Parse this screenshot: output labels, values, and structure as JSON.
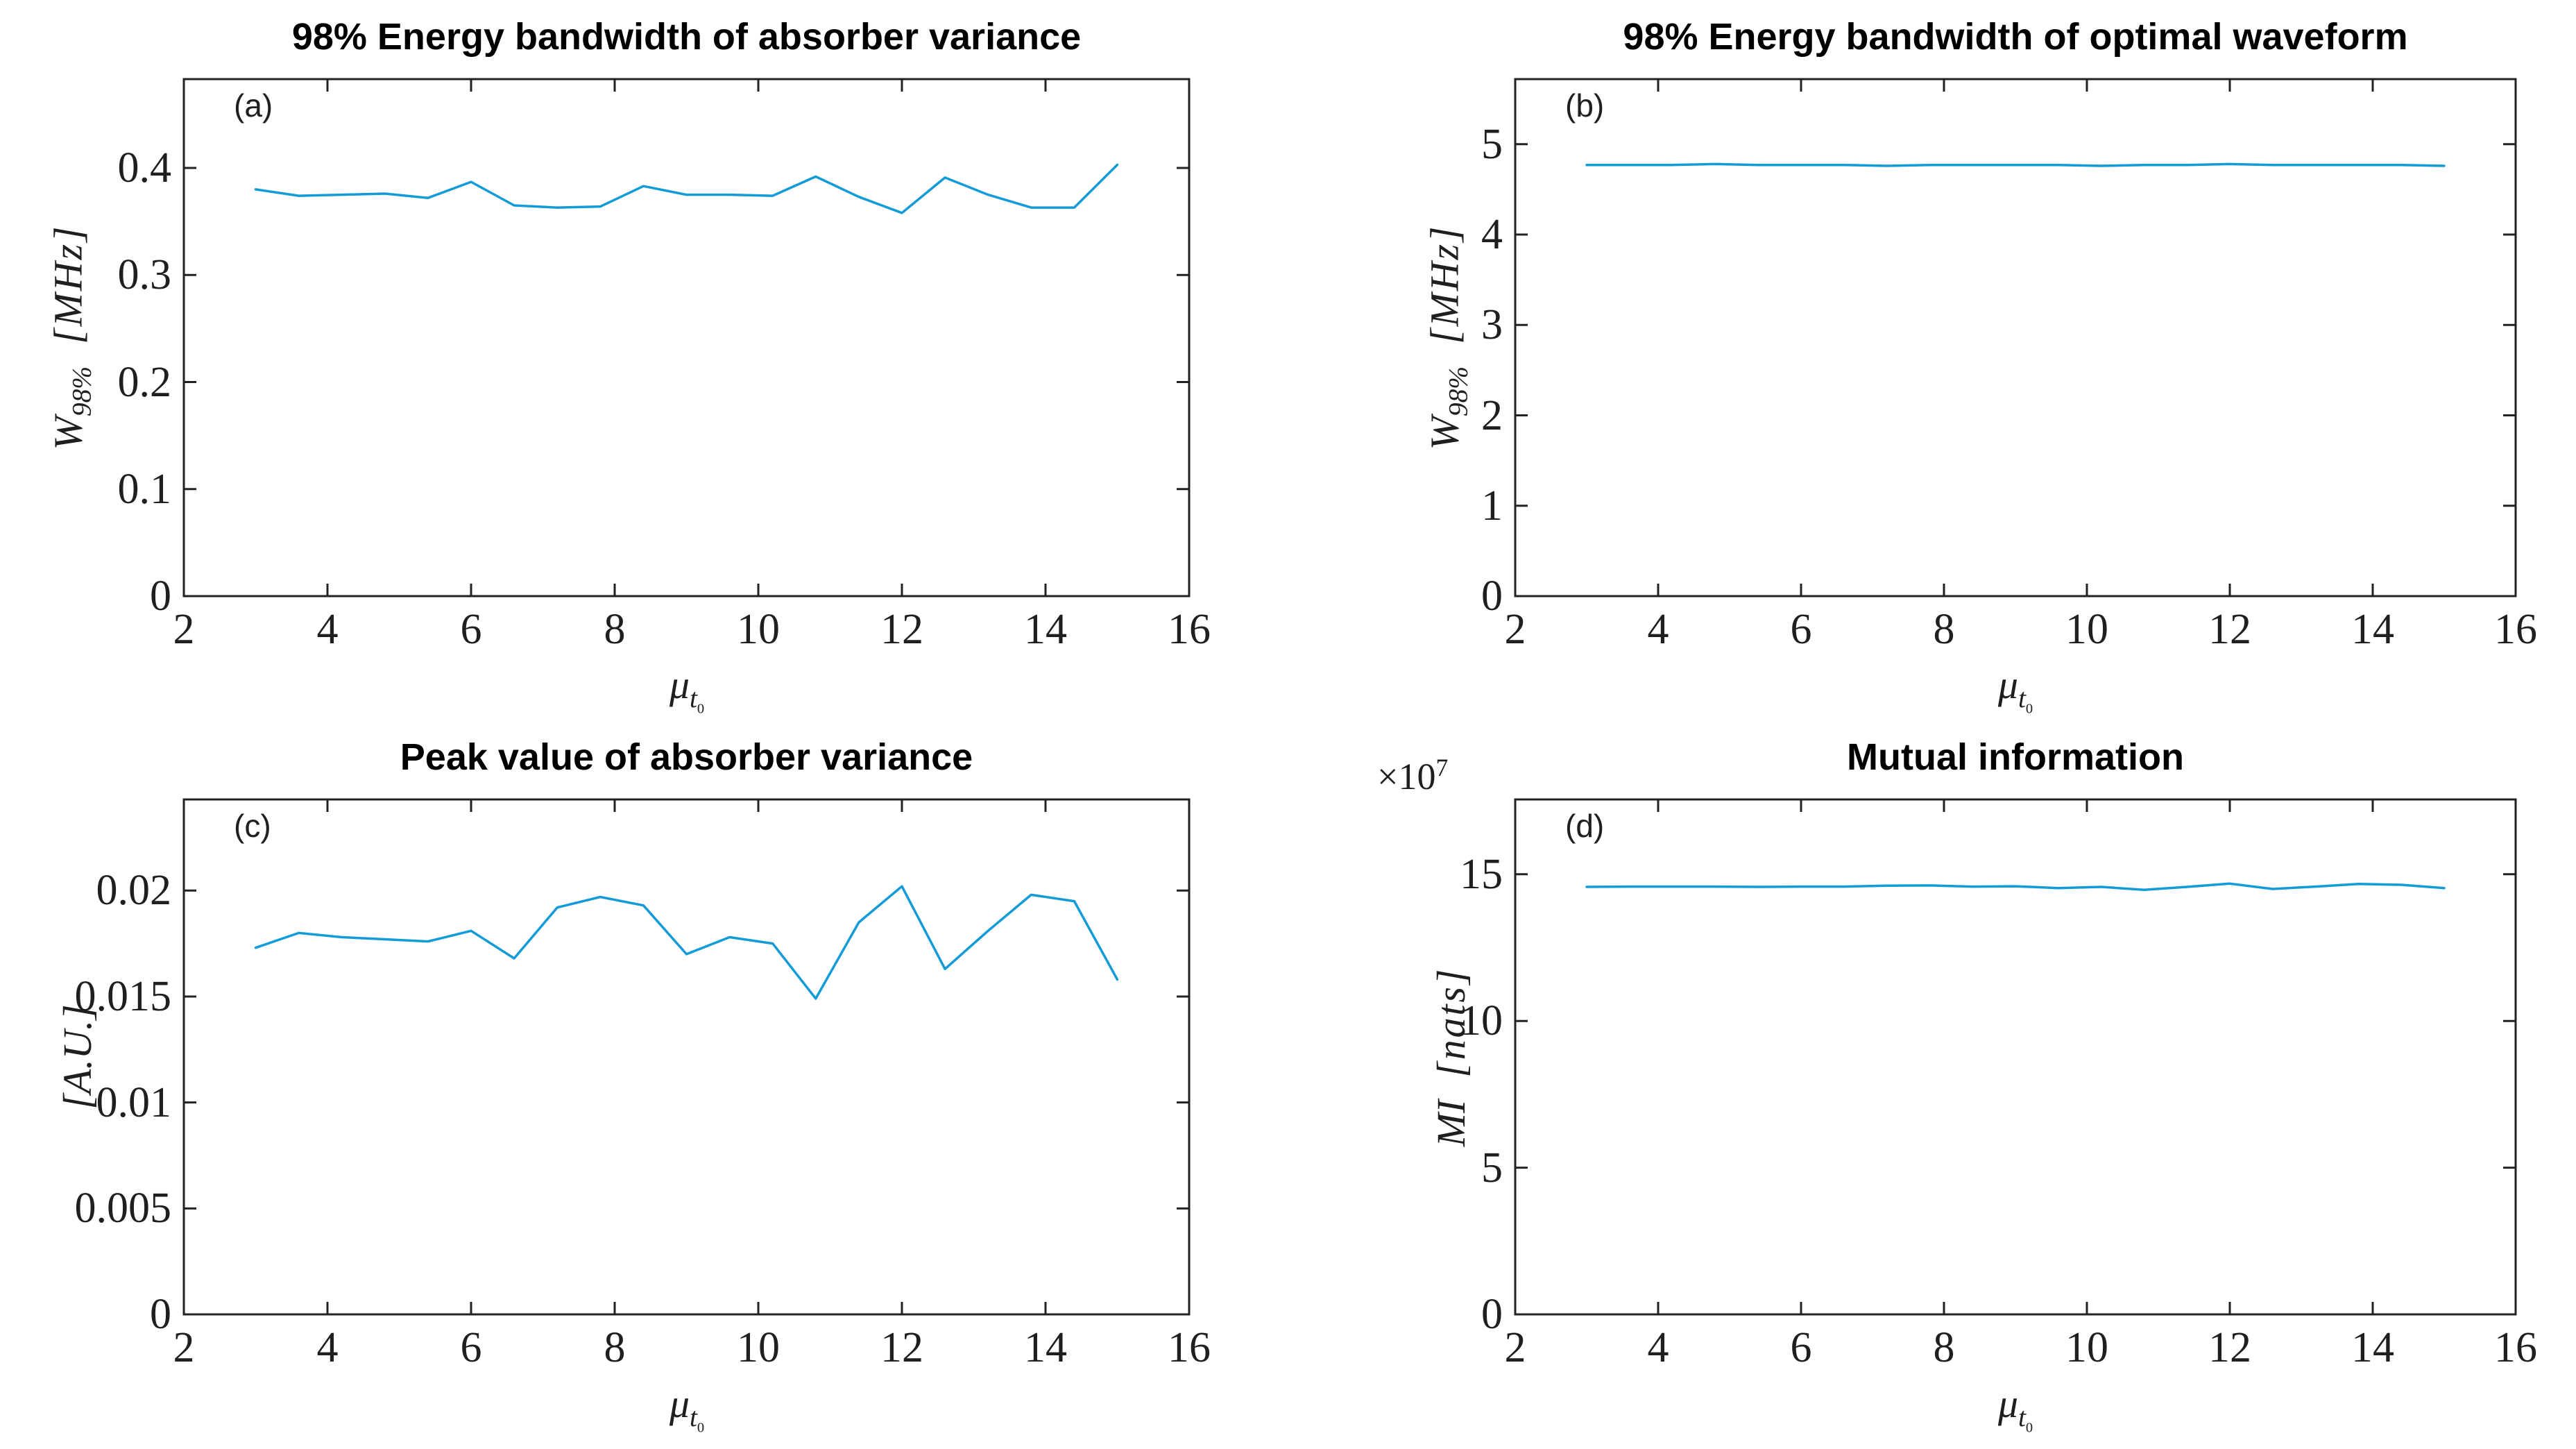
{
  "figure": {
    "background": "#ffffff",
    "axis_color": "#222222",
    "line_color": "#139BD7"
  },
  "panels": {
    "a": {
      "title": "98% Energy bandwidth of absorber variance",
      "label": "(a)",
      "ylabel_base": "W",
      "ylabel_sub": "98%",
      "ylabel_unit": "[MHz]",
      "xlabel_base": "μ",
      "xlabel_sub": "t",
      "xlabel_subsub": "0"
    },
    "b": {
      "title": "98% Energy bandwidth of optimal waveform",
      "label": "(b)",
      "ylabel_base": "W",
      "ylabel_sub": "98%",
      "ylabel_unit": "[MHz]",
      "xlabel_base": "μ",
      "xlabel_sub": "t",
      "xlabel_subsub": "0"
    },
    "c": {
      "title": "Peak value of absorber variance",
      "label": "(c)",
      "ylabel_unit": "[A.U.]",
      "xlabel_base": "μ",
      "xlabel_sub": "t",
      "xlabel_subsub": "0"
    },
    "d": {
      "title": "Mutual information",
      "label": "(d)",
      "ylabel_base": "MI",
      "ylabel_unit": "[nats]",
      "exponent_base": "×10",
      "exponent_power": "7",
      "xlabel_base": "μ",
      "xlabel_sub": "t",
      "xlabel_subsub": "0"
    }
  },
  "chart_data": [
    {
      "panel": "a",
      "type": "line",
      "title": "98% Energy bandwidth of absorber variance",
      "xlabel": "mu_t0",
      "ylabel": "W_98% [MHz]",
      "x": [
        3,
        3.6,
        4.2,
        4.8,
        5.4,
        6,
        6.6,
        7.2,
        7.8,
        8.4,
        9,
        9.6,
        10.2,
        10.8,
        11.4,
        12,
        12.6,
        13.2,
        13.8,
        14.4,
        15
      ],
      "y": [
        0.38,
        0.374,
        0.375,
        0.376,
        0.372,
        0.387,
        0.365,
        0.363,
        0.364,
        0.383,
        0.375,
        0.375,
        0.374,
        0.392,
        0.373,
        0.358,
        0.391,
        0.375,
        0.363,
        0.363,
        0.403
      ],
      "xlim": [
        2,
        16
      ],
      "ylim": [
        0,
        0.483
      ],
      "xticks": {
        "values": [
          2,
          4,
          6,
          8,
          10,
          12,
          14,
          16
        ],
        "labels": [
          "2",
          "4",
          "6",
          "8",
          "10",
          "12",
          "14",
          "16"
        ]
      },
      "yticks": {
        "values": [
          0,
          0.1,
          0.2,
          0.3,
          0.4
        ],
        "labels": [
          "0",
          "0.1",
          "0.2",
          "0.3",
          "0.4"
        ]
      },
      "grid": false,
      "legend": null,
      "line_color": "#139BD7"
    },
    {
      "panel": "b",
      "type": "line",
      "title": "98% Energy bandwidth of optimal waveform",
      "xlabel": "mu_t0",
      "ylabel": "W_98% [MHz]",
      "x": [
        3,
        3.6,
        4.2,
        4.8,
        5.4,
        6,
        6.6,
        7.2,
        7.8,
        8.4,
        9,
        9.6,
        10.2,
        10.8,
        11.4,
        12,
        12.6,
        13.2,
        13.8,
        14.4,
        15
      ],
      "y": [
        4.77,
        4.77,
        4.77,
        4.78,
        4.77,
        4.77,
        4.77,
        4.76,
        4.77,
        4.77,
        4.77,
        4.77,
        4.76,
        4.77,
        4.77,
        4.78,
        4.77,
        4.77,
        4.77,
        4.77,
        4.76
      ],
      "xlim": [
        2,
        16
      ],
      "ylim": [
        0,
        5.72
      ],
      "xticks": {
        "values": [
          2,
          4,
          6,
          8,
          10,
          12,
          14,
          16
        ],
        "labels": [
          "2",
          "4",
          "6",
          "8",
          "10",
          "12",
          "14",
          "16"
        ]
      },
      "yticks": {
        "values": [
          0,
          1,
          2,
          3,
          4,
          5
        ],
        "labels": [
          "0",
          "1",
          "2",
          "3",
          "4",
          "5"
        ]
      },
      "grid": false,
      "legend": null,
      "line_color": "#139BD7"
    },
    {
      "panel": "c",
      "type": "line",
      "title": "Peak value of absorber variance",
      "xlabel": "mu_t0",
      "ylabel": "[A.U.]",
      "x": [
        3,
        3.6,
        4.2,
        4.8,
        5.4,
        6,
        6.6,
        7.2,
        7.8,
        8.4,
        9,
        9.6,
        10.2,
        10.8,
        11.4,
        12,
        12.6,
        13.2,
        13.8,
        14.4,
        15
      ],
      "y": [
        0.0173,
        0.018,
        0.0178,
        0.0177,
        0.0176,
        0.0181,
        0.0168,
        0.0192,
        0.0197,
        0.0193,
        0.017,
        0.0178,
        0.0175,
        0.0149,
        0.0185,
        0.0202,
        0.0163,
        0.0181,
        0.0198,
        0.0195,
        0.0158
      ],
      "xlim": [
        2,
        16
      ],
      "ylim": [
        0,
        0.0243
      ],
      "xticks": {
        "values": [
          2,
          4,
          6,
          8,
          10,
          12,
          14,
          16
        ],
        "labels": [
          "2",
          "4",
          "6",
          "8",
          "10",
          "12",
          "14",
          "16"
        ]
      },
      "yticks": {
        "values": [
          0,
          0.005,
          0.01,
          0.015,
          0.02
        ],
        "labels": [
          "0",
          "0.005",
          "0.01",
          "0.015",
          "0.02"
        ]
      },
      "grid": false,
      "legend": null,
      "line_color": "#139BD7"
    },
    {
      "panel": "d",
      "type": "line",
      "title": "Mutual information",
      "xlabel": "mu_t0",
      "ylabel": "MI [nats]",
      "y_scale_exponent": 7,
      "exponent_label": "×10^7",
      "x": [
        3,
        3.6,
        4.2,
        4.8,
        5.4,
        6,
        6.6,
        7.2,
        7.8,
        8.4,
        9,
        9.6,
        10.2,
        10.8,
        11.4,
        12,
        12.6,
        13.2,
        13.8,
        14.4,
        15
      ],
      "y": [
        14.57,
        14.58,
        14.58,
        14.58,
        14.57,
        14.58,
        14.58,
        14.61,
        14.62,
        14.58,
        14.59,
        14.53,
        14.57,
        14.47,
        14.57,
        14.68,
        14.5,
        14.58,
        14.67,
        14.64,
        14.53
      ],
      "xlim": [
        2,
        16
      ],
      "ylim": [
        0,
        17.55
      ],
      "xticks": {
        "values": [
          2,
          4,
          6,
          8,
          10,
          12,
          14,
          16
        ],
        "labels": [
          "2",
          "4",
          "6",
          "8",
          "10",
          "12",
          "14",
          "16"
        ]
      },
      "yticks": {
        "values": [
          0,
          5,
          10,
          15
        ],
        "labels": [
          "0",
          "5",
          "10",
          "15"
        ]
      },
      "grid": false,
      "legend": null,
      "line_color": "#139BD7"
    }
  ]
}
